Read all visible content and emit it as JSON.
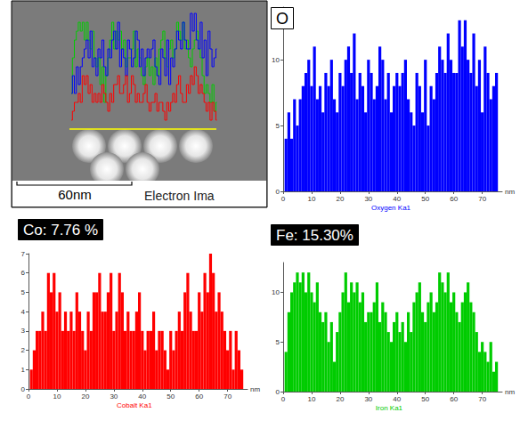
{
  "chart_data": [
    {
      "type": "bar",
      "title": "O",
      "xlabel": "Oxygen Ka1",
      "x_unit": "nm",
      "color": "#0000ff",
      "x": [
        1,
        2,
        3,
        4,
        5,
        6,
        7,
        8,
        9,
        10,
        11,
        12,
        13,
        14,
        15,
        16,
        17,
        18,
        19,
        20,
        21,
        22,
        23,
        24,
        25,
        26,
        27,
        28,
        29,
        30,
        31,
        32,
        33,
        34,
        35,
        36,
        37,
        38,
        39,
        40,
        41,
        42,
        43,
        44,
        45,
        46,
        47,
        48,
        49,
        50,
        51,
        52,
        53,
        54,
        55,
        56,
        57,
        58,
        59,
        60,
        61,
        62,
        63,
        64,
        65,
        66,
        67,
        68,
        69,
        70,
        71,
        72,
        73,
        74,
        75
      ],
      "values": [
        4,
        6,
        4,
        7,
        5,
        7,
        8,
        9,
        10,
        8,
        11,
        7,
        8,
        6,
        9,
        8,
        10,
        7,
        6,
        9,
        8,
        10,
        11,
        9,
        12,
        7,
        9,
        8,
        6,
        10,
        9,
        7,
        8,
        11,
        10,
        7,
        9,
        6,
        8,
        9,
        8,
        9,
        10,
        7,
        6,
        5,
        9,
        8,
        6,
        10,
        5,
        8,
        7,
        9,
        11,
        10,
        9,
        12,
        10,
        9,
        9,
        13,
        11,
        13,
        10,
        9,
        12,
        8,
        10,
        6,
        11,
        9,
        7,
        8,
        9
      ],
      "xlim": [
        0,
        77
      ],
      "xticks": [
        0,
        10,
        20,
        30,
        40,
        50,
        60,
        70
      ],
      "ylim": [
        0,
        14
      ],
      "yticks": [
        0,
        5,
        10
      ],
      "grid": false
    },
    {
      "type": "bar",
      "title": "Co: 7.76 %",
      "xlabel": "Cobalt Ka1",
      "x_unit": "nm",
      "color": "#ff0000",
      "x": [
        1,
        2,
        3,
        4,
        5,
        6,
        7,
        8,
        9,
        10,
        11,
        12,
        13,
        14,
        15,
        16,
        17,
        18,
        19,
        20,
        21,
        22,
        23,
        24,
        25,
        26,
        27,
        28,
        29,
        30,
        31,
        32,
        33,
        34,
        35,
        36,
        37,
        38,
        39,
        40,
        41,
        42,
        43,
        44,
        45,
        46,
        47,
        48,
        49,
        50,
        51,
        52,
        53,
        54,
        55,
        56,
        57,
        58,
        59,
        60,
        61,
        62,
        63,
        64,
        65,
        66,
        67,
        68,
        69,
        70,
        71,
        72,
        73,
        74,
        75
      ],
      "values": [
        1,
        2,
        3,
        3,
        4,
        3,
        6,
        5,
        6,
        4,
        5,
        3,
        4,
        3,
        4,
        3,
        5,
        4,
        3,
        2,
        4,
        3,
        5,
        5,
        6,
        4,
        4,
        5,
        6,
        3,
        4,
        6,
        5,
        3,
        4,
        3,
        3,
        4,
        5,
        3,
        2,
        3,
        3,
        4,
        2,
        3,
        3,
        2,
        1,
        3,
        2,
        3,
        4,
        3,
        5,
        6,
        4,
        3,
        3,
        5,
        4,
        6,
        5,
        7,
        6,
        4,
        5,
        4,
        3,
        2,
        3,
        1,
        3,
        2,
        1
      ],
      "xlim": [
        0,
        77
      ],
      "xticks": [
        0,
        10,
        20,
        30,
        40,
        50,
        60,
        70
      ],
      "ylim": [
        0,
        7
      ],
      "yticks": [
        0,
        1,
        2,
        3,
        4,
        5,
        6,
        7
      ],
      "grid": false
    },
    {
      "type": "bar",
      "title": "Fe: 15.30%",
      "xlabel": "Iron Ka1",
      "x_unit": "nm",
      "color": "#00cc00",
      "x": [
        1,
        2,
        3,
        4,
        5,
        6,
        7,
        8,
        9,
        10,
        11,
        12,
        13,
        14,
        15,
        16,
        17,
        18,
        19,
        20,
        21,
        22,
        23,
        24,
        25,
        26,
        27,
        28,
        29,
        30,
        31,
        32,
        33,
        34,
        35,
        36,
        37,
        38,
        39,
        40,
        41,
        42,
        43,
        44,
        45,
        46,
        47,
        48,
        49,
        50,
        51,
        52,
        53,
        54,
        55,
        56,
        57,
        58,
        59,
        60,
        61,
        62,
        63,
        64,
        65,
        66,
        67,
        68,
        69,
        70,
        71,
        72,
        73,
        74,
        75
      ],
      "values": [
        4,
        8,
        10,
        11,
        12,
        11,
        12,
        10,
        12,
        10,
        9,
        11,
        8,
        7,
        8,
        5,
        7,
        3,
        6,
        8,
        10,
        12,
        9,
        11,
        10,
        11,
        9,
        10,
        7,
        8,
        8,
        9,
        11,
        7,
        9,
        8,
        6,
        5,
        7,
        8,
        6,
        7,
        5,
        8,
        6,
        9,
        10,
        11,
        8,
        7,
        9,
        10,
        8,
        9,
        12,
        11,
        10,
        12,
        9,
        10,
        8,
        7,
        9,
        10,
        11,
        9,
        8,
        6,
        4,
        5,
        4,
        3,
        5,
        2,
        3
      ],
      "xlim": [
        0,
        77
      ],
      "xticks": [
        0,
        10,
        20,
        30,
        40,
        50,
        60,
        70
      ],
      "ylim": [
        0,
        13
      ],
      "yticks": [
        0,
        5,
        10
      ],
      "grid": false
    }
  ],
  "image": {
    "type": "line",
    "scale_bar": "60nm",
    "caption": "Electron Ima"
  }
}
